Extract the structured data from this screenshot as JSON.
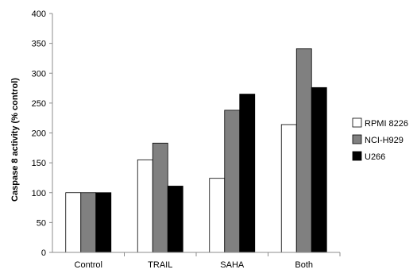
{
  "chart_data": {
    "type": "bar",
    "title": "",
    "xlabel": "",
    "ylabel": "Caspase 8 activity (% control)",
    "ylim": [
      0,
      400
    ],
    "yticks": [
      0,
      50,
      100,
      150,
      200,
      250,
      300,
      350,
      400
    ],
    "categories": [
      "Control",
      "TRAIL",
      "SAHA",
      "Both"
    ],
    "series": [
      {
        "name": "RPMI 8226",
        "color": "#ffffff",
        "values": [
          100,
          155,
          124,
          214
        ]
      },
      {
        "name": "NCI-H929",
        "color": "#808080",
        "values": [
          100,
          183,
          238,
          341
        ]
      },
      {
        "name": "U266",
        "color": "#000000",
        "values": [
          100,
          111,
          265,
          276
        ]
      }
    ],
    "grid": false,
    "legend_position": "right"
  }
}
